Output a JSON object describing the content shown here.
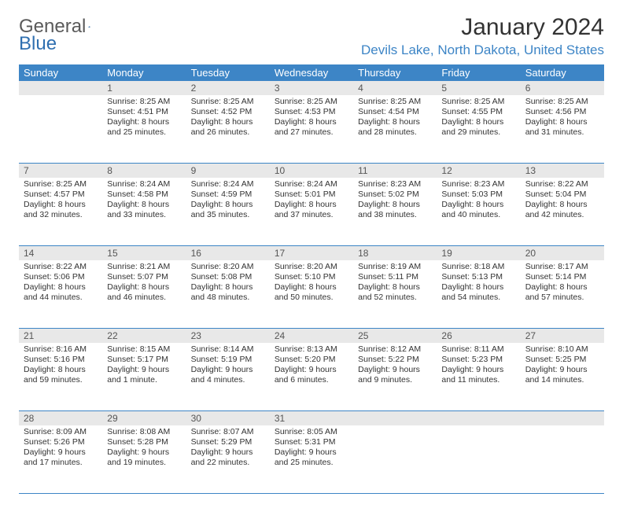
{
  "logo": {
    "word1": "General",
    "word2": "Blue"
  },
  "title": "January 2024",
  "location": "Devils Lake, North Dakota, United States",
  "colors": {
    "header_bg": "#3d85c6",
    "header_text": "#ffffff",
    "daynum_bg": "#e8e8e8",
    "daynum_text": "#555555",
    "cell_text": "#333333",
    "location_text": "#3d85c6",
    "rule": "#3d85c6",
    "page_bg": "#ffffff"
  },
  "fonts": {
    "title_size": 30,
    "location_size": 17,
    "dayhead_size": 13,
    "daynum_size": 12,
    "cell_size": 10.5
  },
  "day_names": [
    "Sunday",
    "Monday",
    "Tuesday",
    "Wednesday",
    "Thursday",
    "Friday",
    "Saturday"
  ],
  "weeks": [
    [
      {
        "n": "",
        "sunrise": "",
        "sunset": "",
        "daylight1": "",
        "daylight2": ""
      },
      {
        "n": "1",
        "sunrise": "Sunrise: 8:25 AM",
        "sunset": "Sunset: 4:51 PM",
        "daylight1": "Daylight: 8 hours",
        "daylight2": "and 25 minutes."
      },
      {
        "n": "2",
        "sunrise": "Sunrise: 8:25 AM",
        "sunset": "Sunset: 4:52 PM",
        "daylight1": "Daylight: 8 hours",
        "daylight2": "and 26 minutes."
      },
      {
        "n": "3",
        "sunrise": "Sunrise: 8:25 AM",
        "sunset": "Sunset: 4:53 PM",
        "daylight1": "Daylight: 8 hours",
        "daylight2": "and 27 minutes."
      },
      {
        "n": "4",
        "sunrise": "Sunrise: 8:25 AM",
        "sunset": "Sunset: 4:54 PM",
        "daylight1": "Daylight: 8 hours",
        "daylight2": "and 28 minutes."
      },
      {
        "n": "5",
        "sunrise": "Sunrise: 8:25 AM",
        "sunset": "Sunset: 4:55 PM",
        "daylight1": "Daylight: 8 hours",
        "daylight2": "and 29 minutes."
      },
      {
        "n": "6",
        "sunrise": "Sunrise: 8:25 AM",
        "sunset": "Sunset: 4:56 PM",
        "daylight1": "Daylight: 8 hours",
        "daylight2": "and 31 minutes."
      }
    ],
    [
      {
        "n": "7",
        "sunrise": "Sunrise: 8:25 AM",
        "sunset": "Sunset: 4:57 PM",
        "daylight1": "Daylight: 8 hours",
        "daylight2": "and 32 minutes."
      },
      {
        "n": "8",
        "sunrise": "Sunrise: 8:24 AM",
        "sunset": "Sunset: 4:58 PM",
        "daylight1": "Daylight: 8 hours",
        "daylight2": "and 33 minutes."
      },
      {
        "n": "9",
        "sunrise": "Sunrise: 8:24 AM",
        "sunset": "Sunset: 4:59 PM",
        "daylight1": "Daylight: 8 hours",
        "daylight2": "and 35 minutes."
      },
      {
        "n": "10",
        "sunrise": "Sunrise: 8:24 AM",
        "sunset": "Sunset: 5:01 PM",
        "daylight1": "Daylight: 8 hours",
        "daylight2": "and 37 minutes."
      },
      {
        "n": "11",
        "sunrise": "Sunrise: 8:23 AM",
        "sunset": "Sunset: 5:02 PM",
        "daylight1": "Daylight: 8 hours",
        "daylight2": "and 38 minutes."
      },
      {
        "n": "12",
        "sunrise": "Sunrise: 8:23 AM",
        "sunset": "Sunset: 5:03 PM",
        "daylight1": "Daylight: 8 hours",
        "daylight2": "and 40 minutes."
      },
      {
        "n": "13",
        "sunrise": "Sunrise: 8:22 AM",
        "sunset": "Sunset: 5:04 PM",
        "daylight1": "Daylight: 8 hours",
        "daylight2": "and 42 minutes."
      }
    ],
    [
      {
        "n": "14",
        "sunrise": "Sunrise: 8:22 AM",
        "sunset": "Sunset: 5:06 PM",
        "daylight1": "Daylight: 8 hours",
        "daylight2": "and 44 minutes."
      },
      {
        "n": "15",
        "sunrise": "Sunrise: 8:21 AM",
        "sunset": "Sunset: 5:07 PM",
        "daylight1": "Daylight: 8 hours",
        "daylight2": "and 46 minutes."
      },
      {
        "n": "16",
        "sunrise": "Sunrise: 8:20 AM",
        "sunset": "Sunset: 5:08 PM",
        "daylight1": "Daylight: 8 hours",
        "daylight2": "and 48 minutes."
      },
      {
        "n": "17",
        "sunrise": "Sunrise: 8:20 AM",
        "sunset": "Sunset: 5:10 PM",
        "daylight1": "Daylight: 8 hours",
        "daylight2": "and 50 minutes."
      },
      {
        "n": "18",
        "sunrise": "Sunrise: 8:19 AM",
        "sunset": "Sunset: 5:11 PM",
        "daylight1": "Daylight: 8 hours",
        "daylight2": "and 52 minutes."
      },
      {
        "n": "19",
        "sunrise": "Sunrise: 8:18 AM",
        "sunset": "Sunset: 5:13 PM",
        "daylight1": "Daylight: 8 hours",
        "daylight2": "and 54 minutes."
      },
      {
        "n": "20",
        "sunrise": "Sunrise: 8:17 AM",
        "sunset": "Sunset: 5:14 PM",
        "daylight1": "Daylight: 8 hours",
        "daylight2": "and 57 minutes."
      }
    ],
    [
      {
        "n": "21",
        "sunrise": "Sunrise: 8:16 AM",
        "sunset": "Sunset: 5:16 PM",
        "daylight1": "Daylight: 8 hours",
        "daylight2": "and 59 minutes."
      },
      {
        "n": "22",
        "sunrise": "Sunrise: 8:15 AM",
        "sunset": "Sunset: 5:17 PM",
        "daylight1": "Daylight: 9 hours",
        "daylight2": "and 1 minute."
      },
      {
        "n": "23",
        "sunrise": "Sunrise: 8:14 AM",
        "sunset": "Sunset: 5:19 PM",
        "daylight1": "Daylight: 9 hours",
        "daylight2": "and 4 minutes."
      },
      {
        "n": "24",
        "sunrise": "Sunrise: 8:13 AM",
        "sunset": "Sunset: 5:20 PM",
        "daylight1": "Daylight: 9 hours",
        "daylight2": "and 6 minutes."
      },
      {
        "n": "25",
        "sunrise": "Sunrise: 8:12 AM",
        "sunset": "Sunset: 5:22 PM",
        "daylight1": "Daylight: 9 hours",
        "daylight2": "and 9 minutes."
      },
      {
        "n": "26",
        "sunrise": "Sunrise: 8:11 AM",
        "sunset": "Sunset: 5:23 PM",
        "daylight1": "Daylight: 9 hours",
        "daylight2": "and 11 minutes."
      },
      {
        "n": "27",
        "sunrise": "Sunrise: 8:10 AM",
        "sunset": "Sunset: 5:25 PM",
        "daylight1": "Daylight: 9 hours",
        "daylight2": "and 14 minutes."
      }
    ],
    [
      {
        "n": "28",
        "sunrise": "Sunrise: 8:09 AM",
        "sunset": "Sunset: 5:26 PM",
        "daylight1": "Daylight: 9 hours",
        "daylight2": "and 17 minutes."
      },
      {
        "n": "29",
        "sunrise": "Sunrise: 8:08 AM",
        "sunset": "Sunset: 5:28 PM",
        "daylight1": "Daylight: 9 hours",
        "daylight2": "and 19 minutes."
      },
      {
        "n": "30",
        "sunrise": "Sunrise: 8:07 AM",
        "sunset": "Sunset: 5:29 PM",
        "daylight1": "Daylight: 9 hours",
        "daylight2": "and 22 minutes."
      },
      {
        "n": "31",
        "sunrise": "Sunrise: 8:05 AM",
        "sunset": "Sunset: 5:31 PM",
        "daylight1": "Daylight: 9 hours",
        "daylight2": "and 25 minutes."
      },
      {
        "n": "",
        "sunrise": "",
        "sunset": "",
        "daylight1": "",
        "daylight2": ""
      },
      {
        "n": "",
        "sunrise": "",
        "sunset": "",
        "daylight1": "",
        "daylight2": ""
      },
      {
        "n": "",
        "sunrise": "",
        "sunset": "",
        "daylight1": "",
        "daylight2": ""
      }
    ]
  ]
}
